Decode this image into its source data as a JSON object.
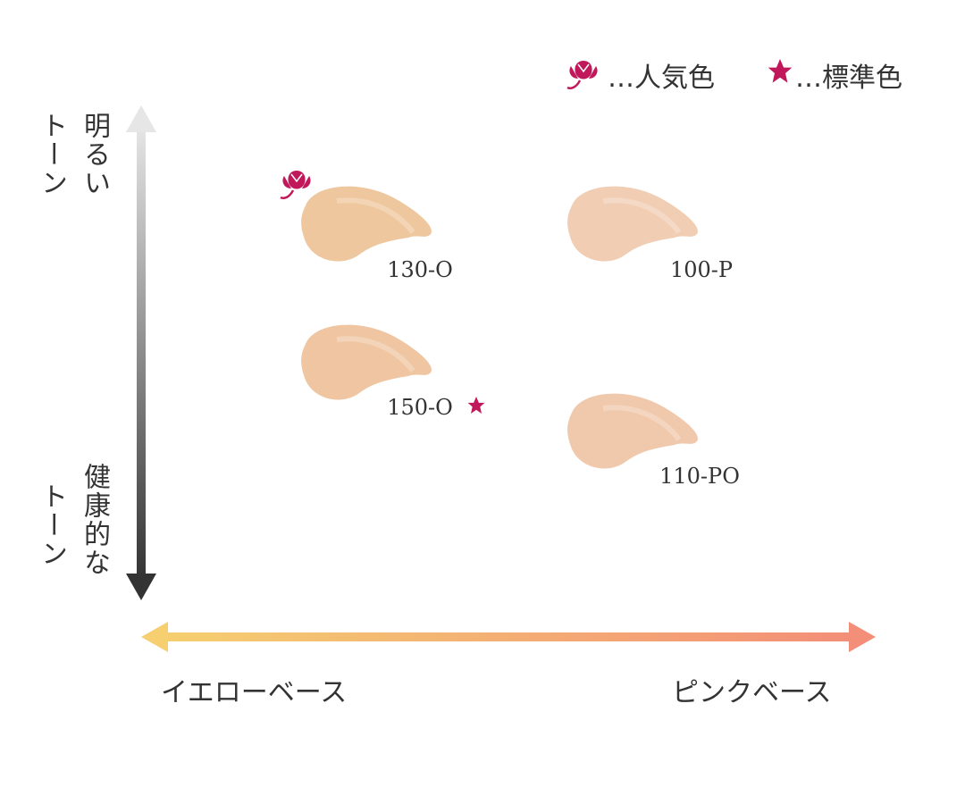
{
  "legend": {
    "popular": "…人気色",
    "standard": "…標準色"
  },
  "y_axis": {
    "top": [
      "明るい",
      "トーン"
    ],
    "bottom": [
      "健康的な",
      "トーン"
    ]
  },
  "x_axis": {
    "left": "イエローベース",
    "right": "ピンクベース"
  },
  "swatches": [
    {
      "label": "130-O",
      "color": "#efc79e"
    },
    {
      "label": "100-P",
      "color": "#f0cdb3"
    },
    {
      "label": "150-O",
      "color": "#efc6a1"
    },
    {
      "label": "110-PO",
      "color": "#f0c8ab"
    }
  ]
}
